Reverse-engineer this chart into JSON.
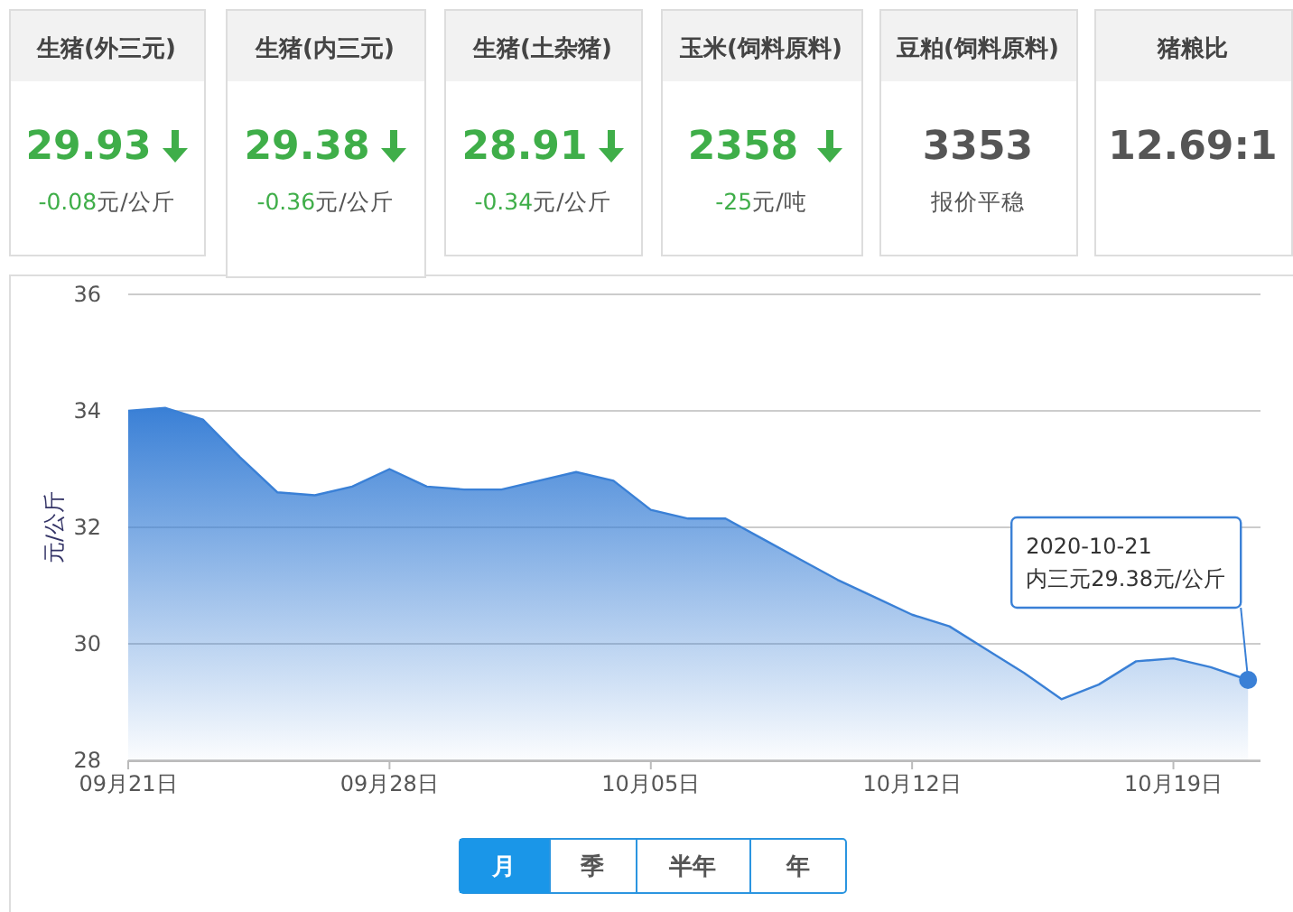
{
  "chart_data": [
    {
      "type": "other",
      "title": "生猪(外三元)",
      "annotations": [
        "29.93",
        "-0.08元/公斤"
      ]
    },
    {
      "type": "other",
      "title": "生猪(内三元)",
      "annotations": [
        "29.38",
        "-0.36元/公斤"
      ]
    },
    {
      "type": "other",
      "title": "生猪(土杂猪)",
      "annotations": [
        "28.91",
        "-0.34元/公斤"
      ]
    },
    {
      "type": "other",
      "title": "玉米(饲料原料)",
      "annotations": [
        "2358",
        "-25元/吨"
      ]
    },
    {
      "type": "other",
      "title": "豆粕(饲料原料)",
      "annotations": [
        "3353",
        "报价平稳"
      ]
    },
    {
      "type": "other",
      "title": "猪粮比",
      "annotations": [
        "12.69:1"
      ]
    },
    {
      "type": "area",
      "ylabel": "元/公斤",
      "x": [
        "2020-09-21",
        "2020-09-22",
        "2020-09-23",
        "2020-09-24",
        "2020-09-25",
        "2020-09-26",
        "2020-09-27",
        "2020-09-28",
        "2020-09-29",
        "2020-09-30",
        "2020-10-01",
        "2020-10-02",
        "2020-10-03",
        "2020-10-04",
        "2020-10-05",
        "2020-10-06",
        "2020-10-07",
        "2020-10-08",
        "2020-10-09",
        "2020-10-10",
        "2020-10-11",
        "2020-10-12",
        "2020-10-13",
        "2020-10-14",
        "2020-10-15",
        "2020-10-16",
        "2020-10-17",
        "2020-10-18",
        "2020-10-19",
        "2020-10-20",
        "2020-10-21"
      ],
      "series": [
        {
          "color": "#3a80d6",
          "values": [
            34.0,
            34.05,
            33.85,
            33.2,
            32.6,
            32.55,
            32.7,
            33.0,
            32.7,
            32.65,
            32.65,
            32.8,
            32.95,
            32.8,
            32.3,
            32.15,
            32.15,
            31.8,
            31.45,
            31.1,
            30.8,
            30.5,
            30.3,
            29.9,
            29.5,
            29.05,
            29.3,
            29.7,
            29.75,
            29.6,
            29.38
          ]
        }
      ],
      "xlim": [
        "2020-09-21",
        "2020-10-21T08:00"
      ],
      "xticks": [
        {
          "value": "2020-09-21",
          "label": "09月21日"
        },
        {
          "value": "2020-09-28",
          "label": "09月28日"
        },
        {
          "value": "2020-10-05",
          "label": "10月05日"
        },
        {
          "value": "2020-10-12",
          "label": "10月12日"
        },
        {
          "value": "2020-10-19",
          "label": "10月19日"
        }
      ],
      "ylim": [
        28,
        36
      ],
      "yticks": [
        28,
        30,
        32,
        34,
        36
      ],
      "grid": "y",
      "annotations": [
        {
          "text": "2020-10-21\n内三元29.38元/公斤",
          "x": "2020-10-21",
          "y": 29.38
        }
      ]
    },
    {
      "type": "other",
      "annotations": [
        "月",
        "季",
        "半年",
        "年"
      ]
    }
  ]
}
